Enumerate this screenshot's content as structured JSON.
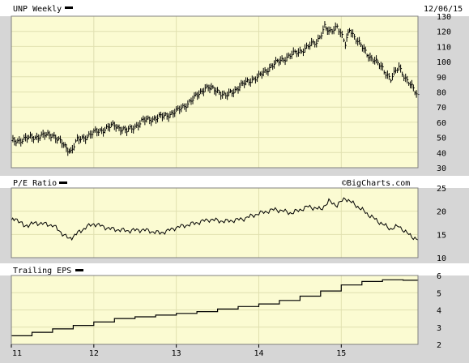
{
  "window": {
    "date": "12/06/15"
  },
  "colors": {
    "plot_bg": "#fbfbd2",
    "frame_bg": "#d6d6d6",
    "header_bg": "#ffffff",
    "grid": "#e0e0b0",
    "line": "#000000"
  },
  "chart_data": [
    {
      "type": "line",
      "title": "UNP Weekly",
      "style": "ohlc-bars",
      "x_years": [
        2011,
        2012,
        2013,
        2014,
        2015
      ],
      "y_ticks": [
        30,
        40,
        50,
        60,
        70,
        80,
        90,
        100,
        110,
        120,
        130
      ],
      "ylim": [
        30,
        130
      ],
      "xlim": [
        2011.0,
        2015.93
      ],
      "grid": true,
      "series": [
        {
          "x": [
            2011.0,
            2011.25,
            2011.5,
            2011.65,
            2011.72,
            2011.8,
            2012.0,
            2012.25,
            2012.4,
            2012.6,
            2012.85,
            2013.0,
            2013.2,
            2013.35,
            2013.5,
            2013.6,
            2013.75,
            2013.9,
            2014.0,
            2014.15,
            2014.3,
            2014.5,
            2014.7,
            2014.8,
            2014.85,
            2014.95,
            2015.05,
            2015.1,
            2015.2,
            2015.35,
            2015.5,
            2015.6,
            2015.7,
            2015.8,
            2015.93
          ],
          "values": [
            47,
            50,
            52,
            44,
            41,
            48,
            53,
            58,
            54,
            61,
            64,
            67,
            75,
            83,
            81,
            77,
            83,
            88,
            90,
            97,
            102,
            107,
            113,
            123,
            119,
            124,
            111,
            122,
            113,
            103,
            96,
            88,
            97,
            87,
            78
          ]
        }
      ]
    },
    {
      "type": "line",
      "title": "P/E Ratio",
      "x_years": [
        2011,
        2012,
        2013,
        2014,
        2015
      ],
      "y_ticks": [
        10,
        15,
        20,
        25
      ],
      "ylim": [
        10,
        25
      ],
      "xlim": [
        2011.0,
        2015.93
      ],
      "grid": true,
      "series": [
        {
          "x": [
            2011.0,
            2011.05,
            2011.15,
            2011.3,
            2011.5,
            2011.6,
            2011.7,
            2011.75,
            2011.9,
            2012.0,
            2012.2,
            2012.4,
            2012.6,
            2012.8,
            2012.9,
            2013.0,
            2013.2,
            2013.4,
            2013.6,
            2013.8,
            2014.0,
            2014.2,
            2014.4,
            2014.6,
            2014.75,
            2014.85,
            2014.95,
            2015.05,
            2015.2,
            2015.35,
            2015.5,
            2015.6,
            2015.7,
            2015.8,
            2015.93
          ],
          "values": [
            17.8,
            18.6,
            16.8,
            17.5,
            17.0,
            15.5,
            14.0,
            14.6,
            16.5,
            17.3,
            16.2,
            15.8,
            16.0,
            15.3,
            15.8,
            16.5,
            17.3,
            18.2,
            17.8,
            18.3,
            19.5,
            20.4,
            19.6,
            21.0,
            20.4,
            22.1,
            21.3,
            22.8,
            21.0,
            19.0,
            17.2,
            16.2,
            16.8,
            15.2,
            13.8
          ]
        }
      ]
    },
    {
      "type": "line",
      "title": "Trailing EPS",
      "style": "step",
      "x_years": [
        2011,
        2012,
        2013,
        2014,
        2015
      ],
      "x_labels": [
        "11",
        "12",
        "13",
        "14",
        "15"
      ],
      "y_ticks": [
        2,
        3,
        4,
        5,
        6
      ],
      "ylim": [
        2,
        6
      ],
      "xlim": [
        2011.0,
        2015.93
      ],
      "grid": true,
      "series": [
        {
          "x": [
            2011.0,
            2011.25,
            2011.5,
            2011.75,
            2012.0,
            2012.25,
            2012.5,
            2012.75,
            2013.0,
            2013.25,
            2013.5,
            2013.75,
            2014.0,
            2014.25,
            2014.5,
            2014.75,
            2015.0,
            2015.25,
            2015.5,
            2015.75,
            2015.93
          ],
          "values": [
            2.5,
            2.7,
            2.9,
            3.1,
            3.3,
            3.5,
            3.6,
            3.7,
            3.8,
            3.9,
            4.05,
            4.2,
            4.35,
            4.55,
            4.8,
            5.1,
            5.45,
            5.65,
            5.75,
            5.72,
            5.7
          ]
        }
      ]
    }
  ],
  "watermark": "©BigCharts.com"
}
